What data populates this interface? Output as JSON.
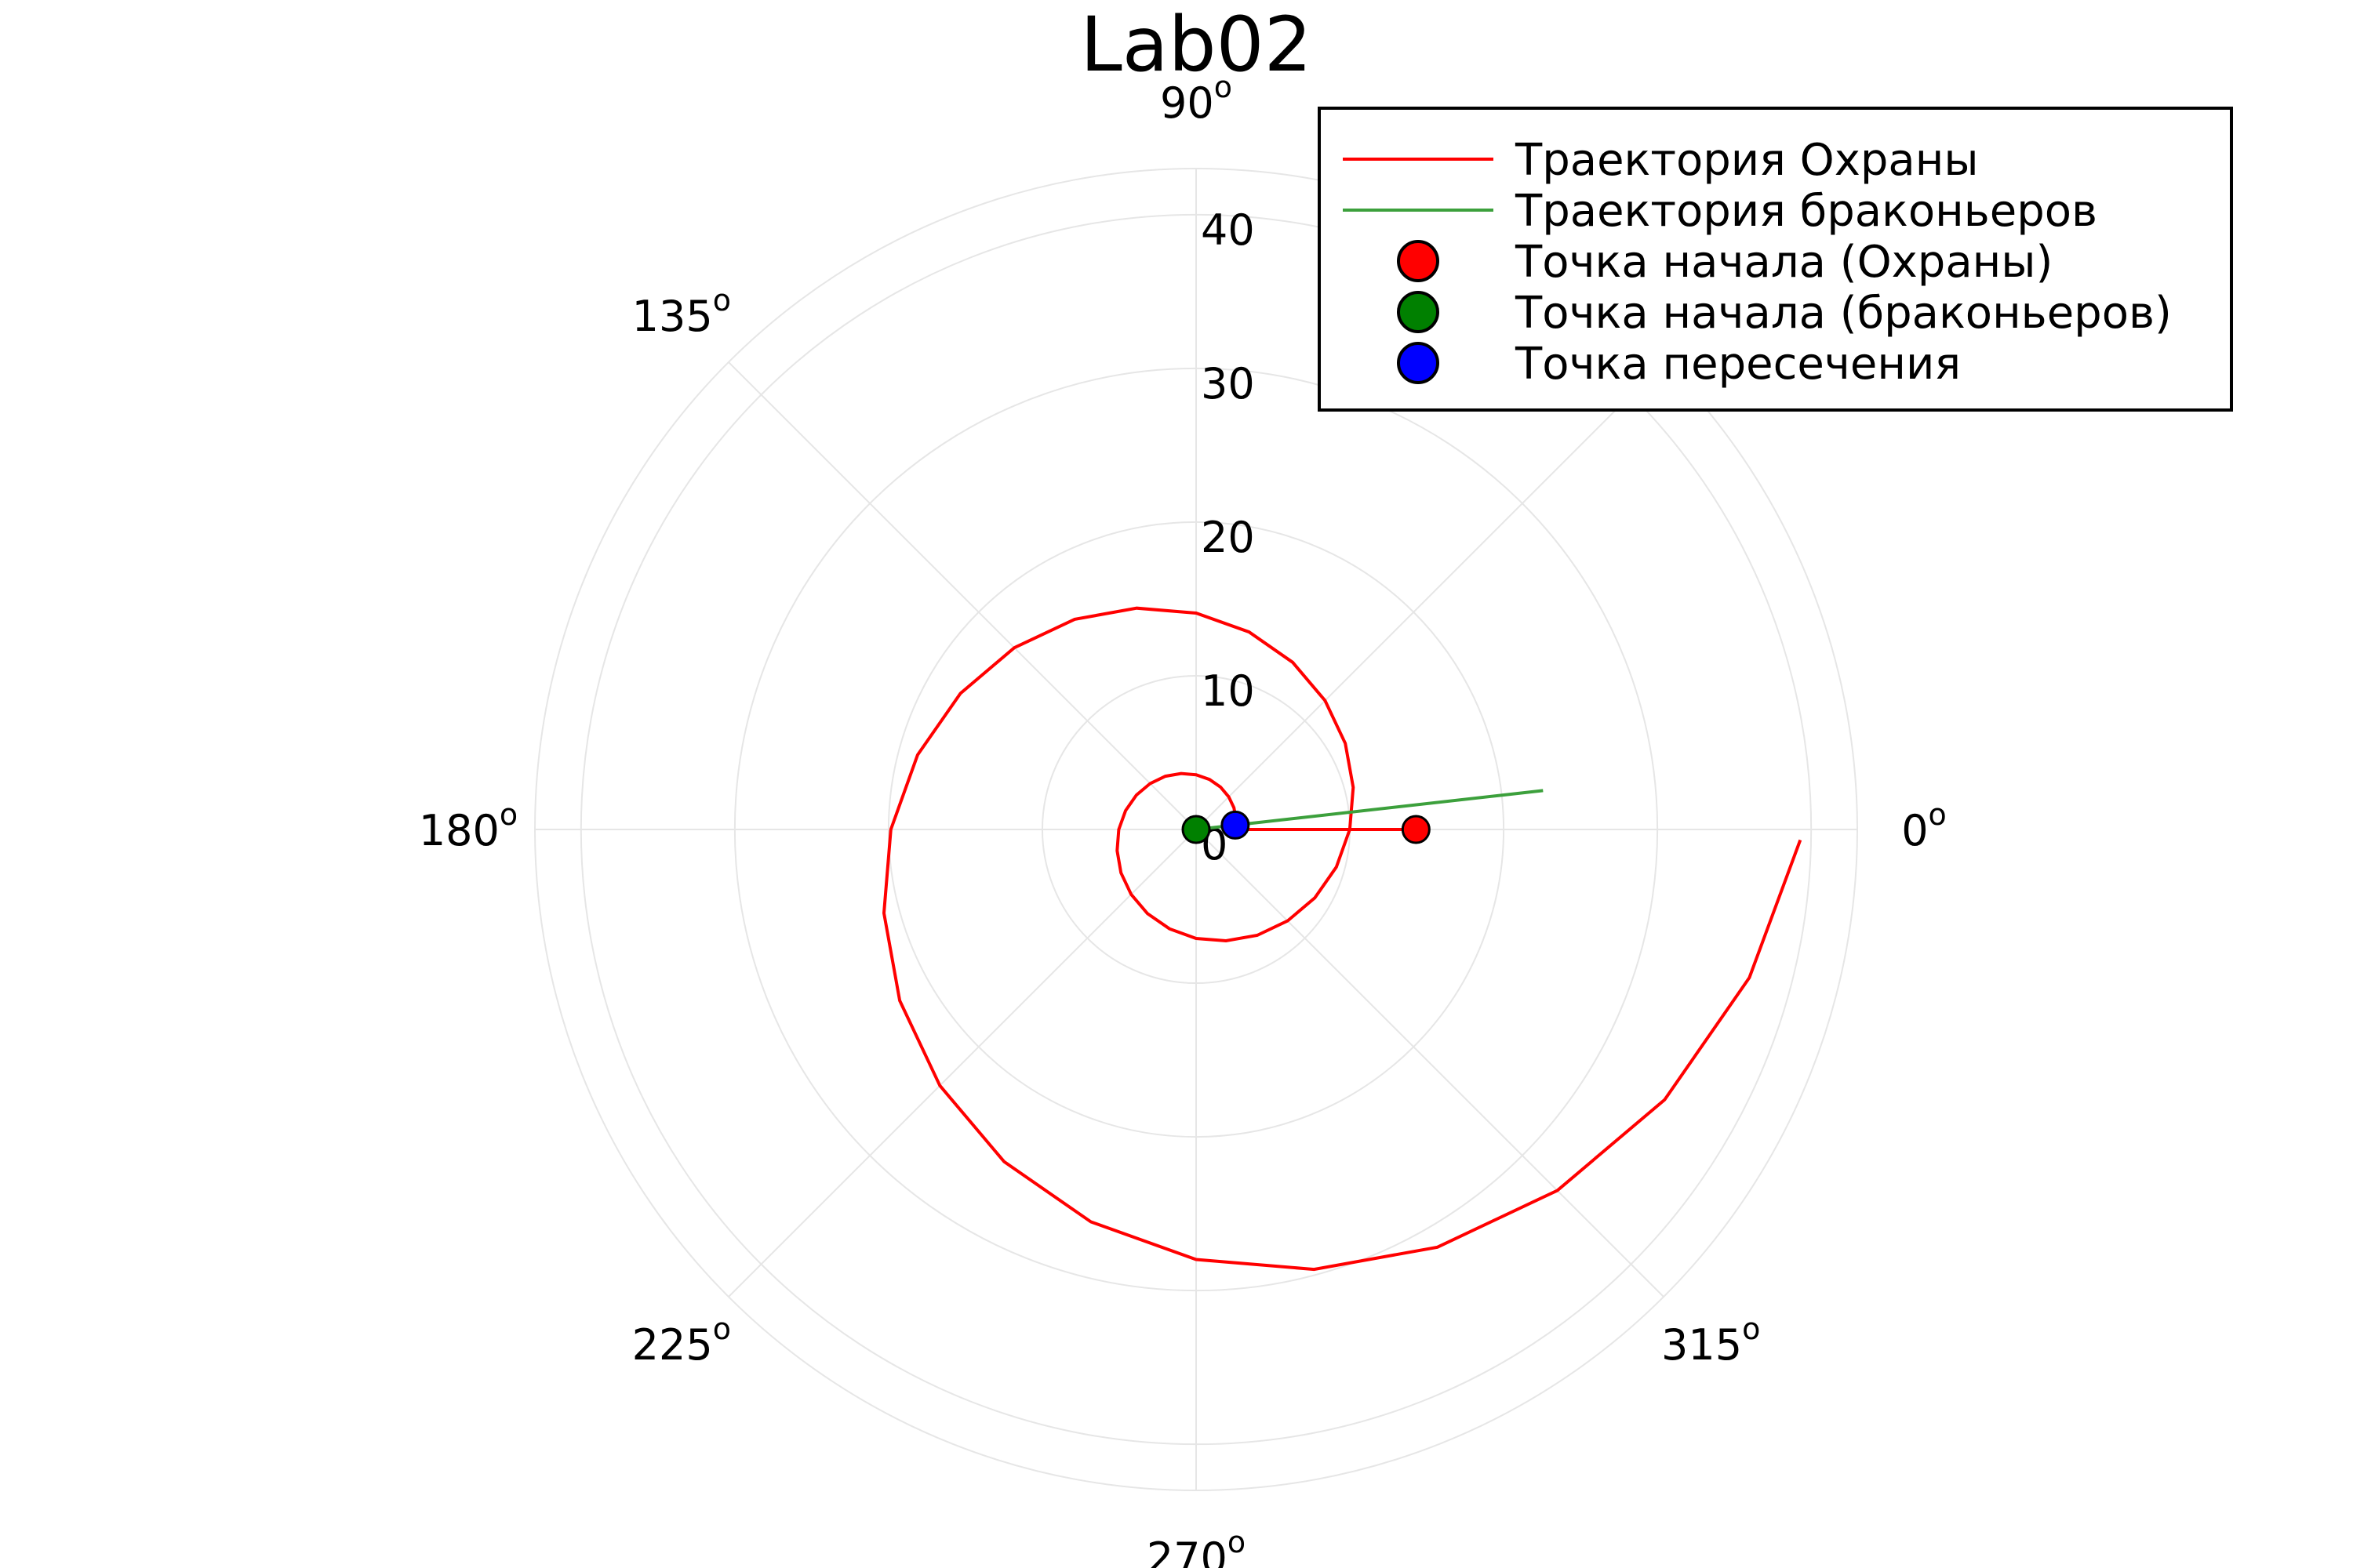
{
  "chart_data": {
    "type": "polar",
    "title": "Lab02",
    "rlim": [
      0,
      43
    ],
    "rticks": [
      0,
      10,
      20,
      30,
      40
    ],
    "thetaticks": [
      0,
      45,
      90,
      135,
      180,
      225,
      270,
      315
    ],
    "theta_tick_suffix": "o",
    "grid": true,
    "legend": "top-right",
    "series": [
      {
        "name": "Траектория Охраны",
        "kind": "line",
        "color": "#ff0000",
        "theta": [
          0,
          0,
          15,
          30,
          45,
          60,
          75,
          90,
          105,
          120,
          135,
          150,
          165,
          180,
          195,
          210,
          225,
          240,
          255,
          270,
          285,
          300,
          315,
          330,
          345,
          360,
          375,
          390,
          405,
          420,
          435,
          450,
          465,
          480,
          495,
          510,
          525,
          540,
          555,
          570,
          585,
          600,
          615,
          630,
          645,
          660,
          675,
          690,
          705,
          719
        ],
        "r": [
          14.3,
          2.53,
          2.68,
          2.84,
          3.0,
          3.18,
          3.37,
          3.56,
          3.77,
          4.0,
          4.23,
          4.48,
          4.75,
          5.03,
          5.32,
          5.64,
          5.97,
          6.32,
          6.69,
          7.09,
          7.5,
          7.95,
          8.41,
          8.91,
          9.44,
          9.99,
          10.58,
          11.2,
          11.86,
          12.56,
          13.3,
          14.08,
          14.91,
          15.79,
          16.72,
          17.7,
          18.75,
          19.85,
          21.02,
          22.26,
          23.57,
          24.96,
          26.43,
          27.98,
          29.63,
          31.38,
          33.22,
          35.18,
          37.25,
          39.3
        ]
      },
      {
        "name": "Траектория браконьеров",
        "kind": "line",
        "color": "#3ca03c",
        "theta": [
          6.4,
          6.4
        ],
        "r": [
          0,
          22.7
        ]
      },
      {
        "name": "Точка начала (Охраны)",
        "kind": "marker",
        "color": "#ff0000",
        "theta": [
          0
        ],
        "r": [
          14.3
        ]
      },
      {
        "name": "Точка начала (браконьеров)",
        "kind": "marker",
        "color": "#008000",
        "theta": [
          0
        ],
        "r": [
          0
        ]
      },
      {
        "name": "Точка пересечения",
        "kind": "marker",
        "color": "#0000ff",
        "theta": [
          6.4
        ],
        "r": [
          2.56
        ]
      }
    ]
  }
}
